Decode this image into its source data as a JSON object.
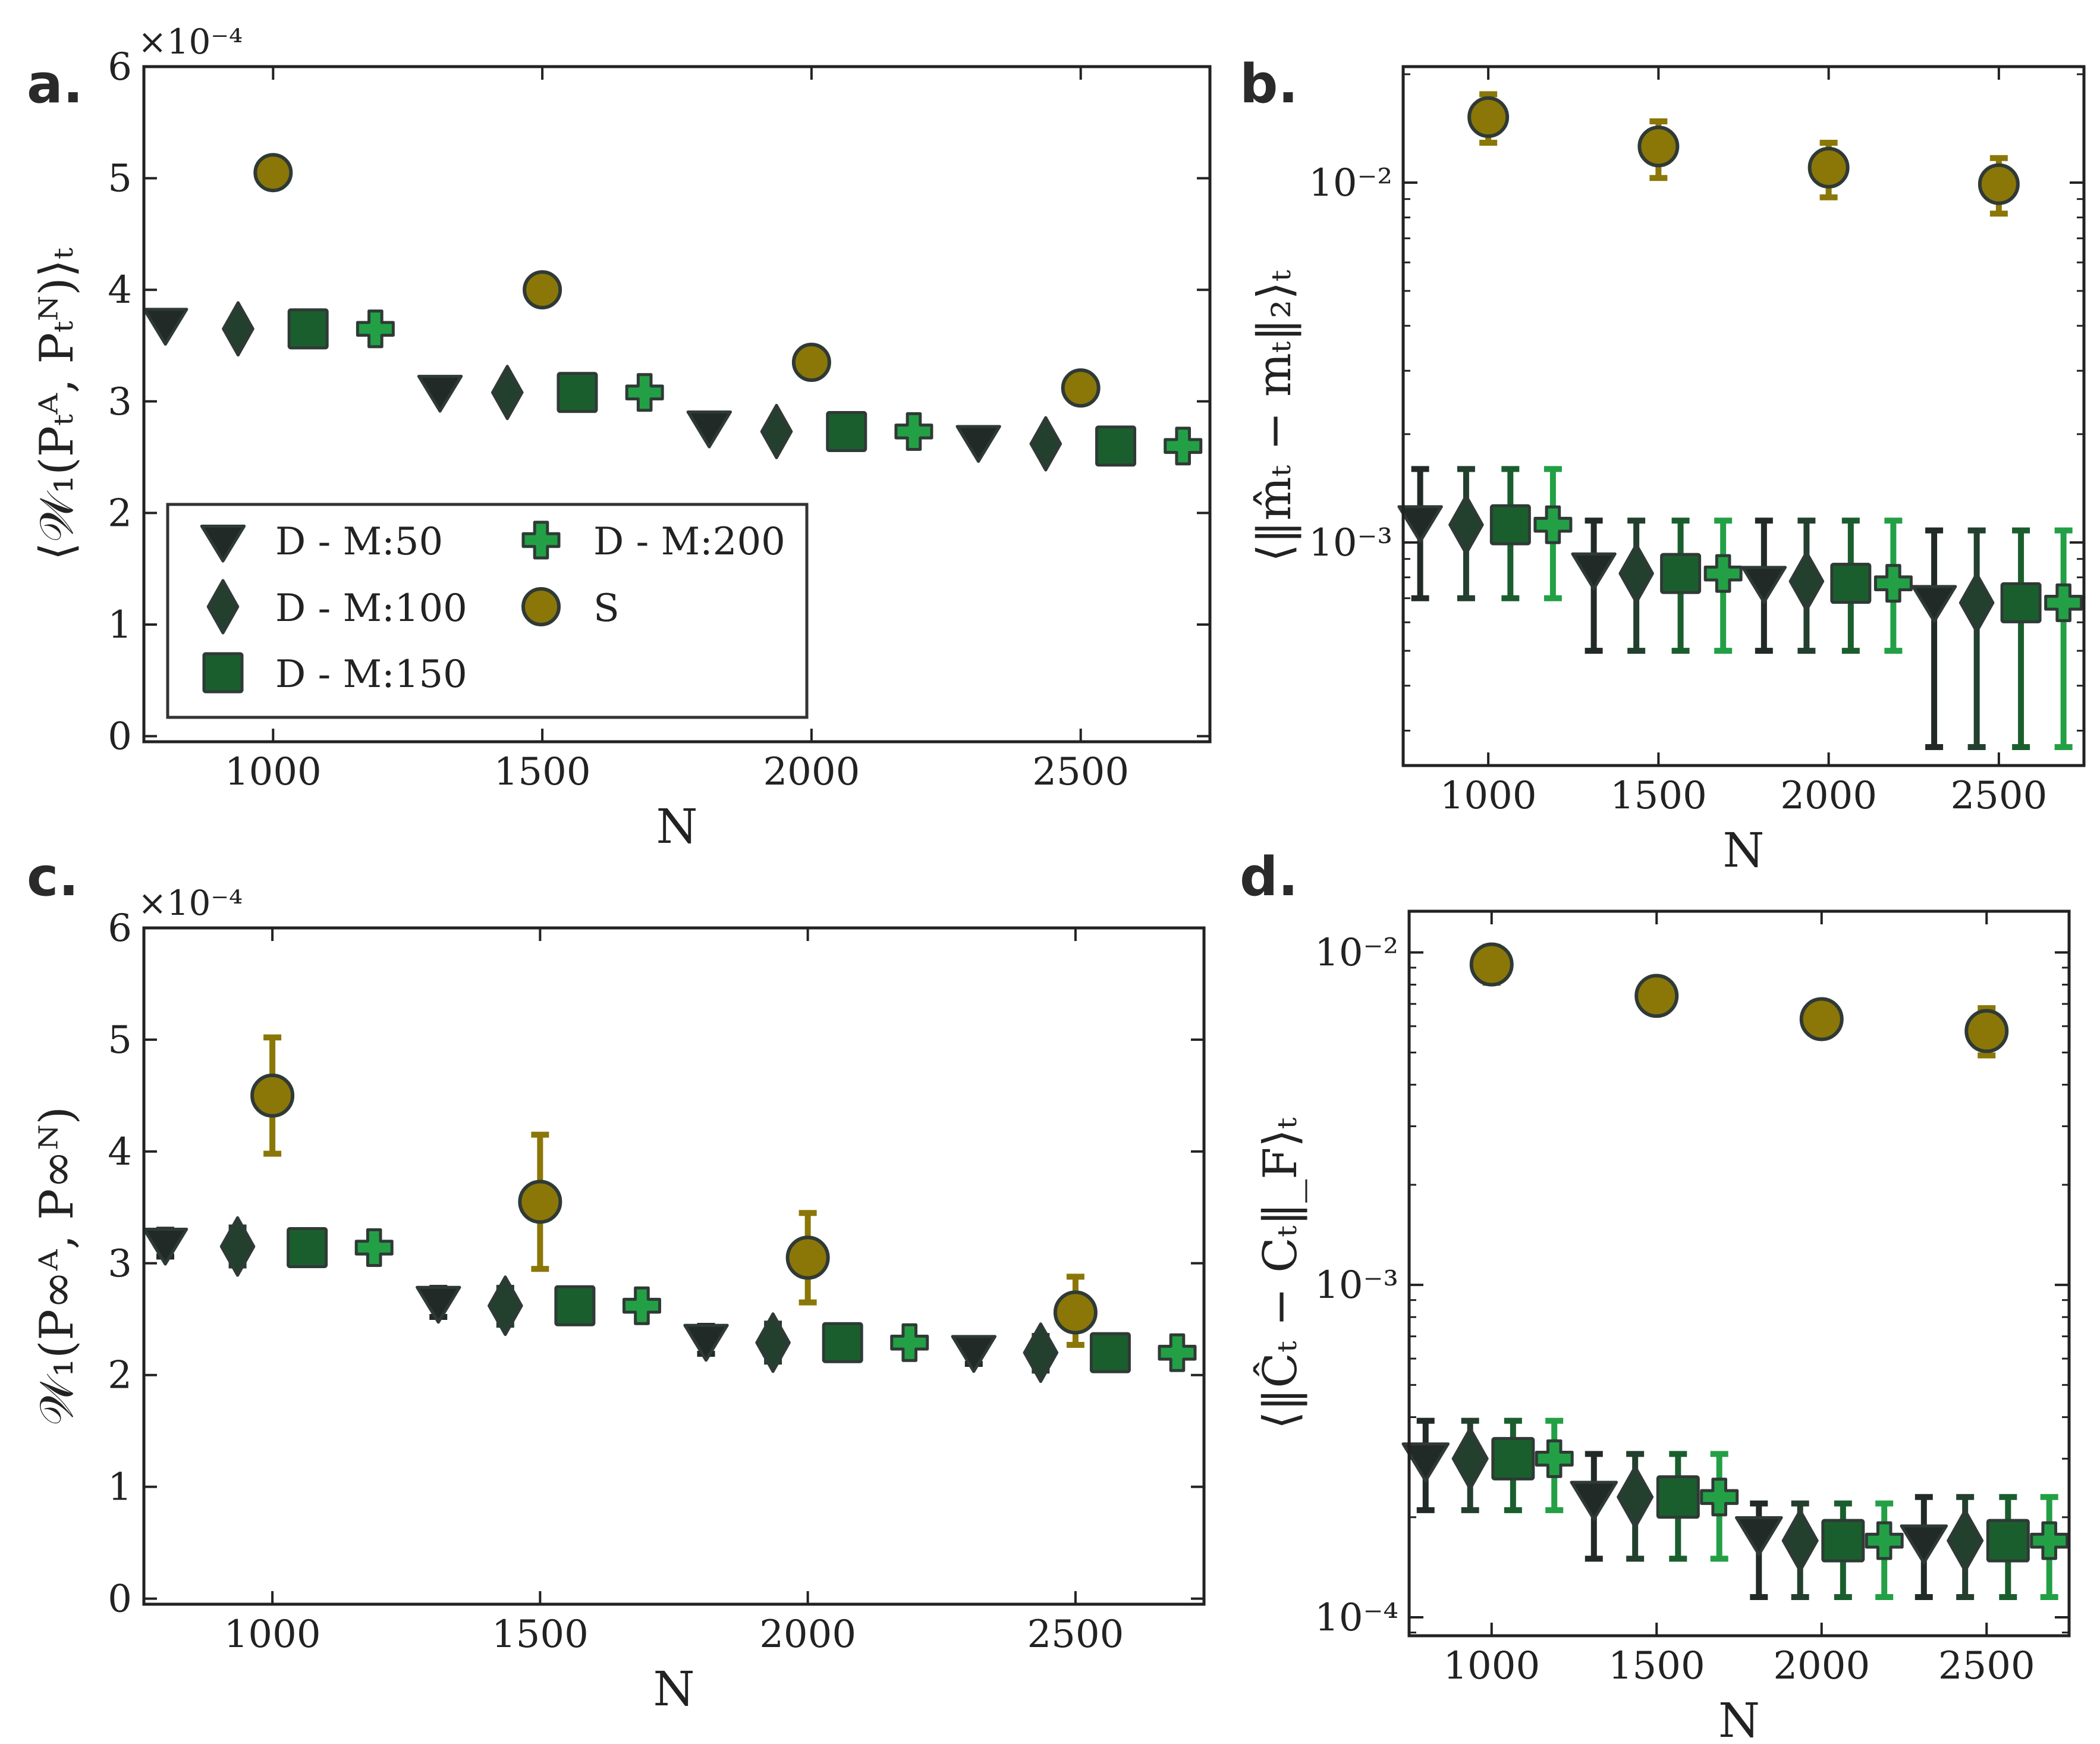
{
  "chart_data": [
    {
      "id": "a",
      "panel_label": "a.",
      "type": "scatter",
      "xlabel": "N",
      "ylabel": "⟨𝒲₁(Pₜᴬ, Pₜᴺ)⟩ₜ",
      "y_multiplier": "×10⁻⁴",
      "xlim": [
        760,
        2740
      ],
      "ylim": [
        -0.05,
        6
      ],
      "xticks": [
        1000,
        1500,
        2000,
        2500
      ],
      "yticks": [
        0,
        1,
        2,
        3,
        4,
        5,
        6
      ],
      "ytick_labels": [
        "0",
        "1",
        "2",
        "3",
        "4",
        "5",
        "6"
      ],
      "yscale": "linear",
      "legend": {
        "placement": "lower-left",
        "columns": 2
      },
      "series": [
        {
          "name": "D - M:50",
          "marker": "triangle-down",
          "color": "#222a28",
          "points": [
            [
              800,
              3.7
            ],
            [
              1310,
              3.1
            ],
            [
              1810,
              2.78
            ],
            [
              2310,
              2.65
            ]
          ]
        },
        {
          "name": "D - M:100",
          "marker": "diamond",
          "color": "#233f2e",
          "points": [
            [
              935,
              3.65
            ],
            [
              1435,
              3.08
            ],
            [
              1935,
              2.73
            ],
            [
              2435,
              2.62
            ]
          ]
        },
        {
          "name": "D - M:150",
          "marker": "square",
          "color": "#1b5e2e",
          "points": [
            [
              1065,
              3.65
            ],
            [
              1565,
              3.08
            ],
            [
              2065,
              2.73
            ],
            [
              2565,
              2.6
            ]
          ]
        },
        {
          "name": "D - M:200",
          "marker": "plus",
          "color": "#23a045",
          "points": [
            [
              1190,
              3.65
            ],
            [
              1690,
              3.08
            ],
            [
              2190,
              2.73
            ],
            [
              2690,
              2.6
            ]
          ]
        },
        {
          "name": "S",
          "marker": "circle",
          "color": "#8b7708",
          "points": [
            [
              1000,
              5.05
            ],
            [
              1500,
              4.0
            ],
            [
              2000,
              3.35
            ],
            [
              2500,
              3.12
            ]
          ]
        }
      ]
    },
    {
      "id": "b",
      "panel_label": "b.",
      "type": "scatter",
      "xlabel": "N",
      "ylabel": "⟨‖m̂ₜ − mₜ‖₂⟩ₜ",
      "xlim": [
        750,
        2750
      ],
      "ylim": [
        0.00024,
        0.021
      ],
      "xticks": [
        1000,
        1500,
        2000,
        2500
      ],
      "yscale": "log",
      "ytick_values": [
        0.001,
        0.01
      ],
      "ytick_labels": [
        "10⁻³",
        "10⁻²"
      ],
      "series": [
        {
          "name": "D - M:50",
          "marker": "triangle-down",
          "color": "#222a28",
          "points": [
            [
              800,
              0.00115,
              0.0007,
              0.0016
            ],
            [
              1310,
              0.00085,
              0.0005,
              0.00115
            ],
            [
              1810,
              0.00078,
              0.0005,
              0.00115
            ],
            [
              2310,
              0.00069,
              0.00027,
              0.00108
            ]
          ]
        },
        {
          "name": "D - M:100",
          "marker": "diamond",
          "color": "#233f2e",
          "points": [
            [
              935,
              0.00112,
              0.0007,
              0.0016
            ],
            [
              1435,
              0.00082,
              0.0005,
              0.00115
            ],
            [
              1935,
              0.00078,
              0.0005,
              0.00115
            ],
            [
              2435,
              0.00068,
              0.00027,
              0.00108
            ]
          ]
        },
        {
          "name": "D - M:150",
          "marker": "square",
          "color": "#1b5e2e",
          "points": [
            [
              1065,
              0.00112,
              0.0007,
              0.0016
            ],
            [
              1565,
              0.00082,
              0.0005,
              0.00115
            ],
            [
              2065,
              0.00077,
              0.0005,
              0.00115
            ],
            [
              2565,
              0.00068,
              0.00027,
              0.00108
            ]
          ]
        },
        {
          "name": "D - M:200",
          "marker": "plus",
          "color": "#23a045",
          "points": [
            [
              1190,
              0.00112,
              0.0007,
              0.0016
            ],
            [
              1690,
              0.00082,
              0.0005,
              0.00115
            ],
            [
              2190,
              0.00077,
              0.0005,
              0.00115
            ],
            [
              2690,
              0.00068,
              0.00027,
              0.00108
            ]
          ]
        },
        {
          "name": "S",
          "marker": "circle",
          "color": "#8b7708",
          "points": [
            [
              1000,
              0.0152,
              0.0129,
              0.0176
            ],
            [
              1500,
              0.0126,
              0.0103,
              0.0148
            ],
            [
              2000,
              0.011,
              0.0091,
              0.0129
            ],
            [
              2500,
              0.0099,
              0.0082,
              0.0117
            ]
          ]
        }
      ]
    },
    {
      "id": "c",
      "panel_label": "c.",
      "type": "scatter",
      "xlabel": "N",
      "ylabel": "𝒲₁(P∞ᴬ, P∞ᴺ)",
      "y_multiplier": "×10⁻⁴",
      "xlim": [
        760,
        2740
      ],
      "ylim": [
        -0.05,
        6
      ],
      "xticks": [
        1000,
        1500,
        2000,
        2500
      ],
      "yticks": [
        0,
        1,
        2,
        3,
        4,
        5,
        6
      ],
      "ytick_labels": [
        "0",
        "1",
        "2",
        "3",
        "4",
        "5",
        "6"
      ],
      "yscale": "linear",
      "series": [
        {
          "name": "D - M:50",
          "marker": "triangle-down",
          "color": "#222a28",
          "points": [
            [
              800,
              3.18,
              3.06,
              3.3
            ],
            [
              1310,
              2.66,
              2.52,
              2.78
            ],
            [
              1810,
              2.32,
              2.19,
              2.44
            ],
            [
              2310,
              2.22,
              2.1,
              2.33
            ]
          ]
        },
        {
          "name": "D - M:100",
          "marker": "diamond",
          "color": "#233f2e",
          "points": [
            [
              935,
              3.15,
              2.98,
              3.32
            ],
            [
              1435,
              2.62,
              2.45,
              2.78
            ],
            [
              1935,
              2.29,
              2.12,
              2.46
            ],
            [
              2435,
              2.2,
              2.04,
              2.35
            ]
          ]
        },
        {
          "name": "D - M:150",
          "marker": "square",
          "color": "#1b5e2e",
          "points": [
            [
              1065,
              3.14
            ],
            [
              1565,
              2.62
            ],
            [
              2065,
              2.29
            ],
            [
              2565,
              2.2
            ]
          ]
        },
        {
          "name": "D - M:200",
          "marker": "plus",
          "color": "#23a045",
          "points": [
            [
              1190,
              3.14
            ],
            [
              1690,
              2.62
            ],
            [
              2190,
              2.29
            ],
            [
              2690,
              2.2
            ]
          ]
        },
        {
          "name": "S",
          "marker": "circle",
          "color": "#8b7708",
          "points": [
            [
              1000,
              4.5,
              3.98,
              5.02
            ],
            [
              1500,
              3.55,
              2.95,
              4.15
            ],
            [
              2000,
              3.05,
              2.65,
              3.45
            ],
            [
              2500,
              2.56,
              2.27,
              2.88
            ]
          ]
        }
      ]
    },
    {
      "id": "d",
      "panel_label": "d.",
      "type": "scatter",
      "xlabel": "N",
      "ylabel": "⟨‖Ĉₜ − Cₜ‖_F⟩ₜ",
      "xlim": [
        750,
        2750
      ],
      "ylim": [
        8.8e-05,
        0.0133
      ],
      "xticks": [
        1000,
        1500,
        2000,
        2500
      ],
      "yscale": "log",
      "ytick_values": [
        0.0001,
        0.001,
        0.01
      ],
      "ytick_labels": [
        "10⁻⁴",
        "10⁻³",
        "10⁻²"
      ],
      "series": [
        {
          "name": "D - M:50",
          "marker": "triangle-down",
          "color": "#222a28",
          "points": [
            [
              800,
              0.0003,
              0.00021,
              0.00039
            ],
            [
              1310,
              0.00023,
              0.00015,
              0.00031
            ],
            [
              1810,
              0.00018,
              0.000115,
              0.00022
            ],
            [
              2310,
              0.00017,
              0.000115,
              0.00023
            ]
          ]
        },
        {
          "name": "D - M:100",
          "marker": "diamond",
          "color": "#233f2e",
          "points": [
            [
              935,
              0.0003,
              0.00021,
              0.00039
            ],
            [
              1435,
              0.00023,
              0.00015,
              0.00031
            ],
            [
              1935,
              0.00017,
              0.000115,
              0.00022
            ],
            [
              2435,
              0.00017,
              0.000115,
              0.00023
            ]
          ]
        },
        {
          "name": "D - M:150",
          "marker": "square",
          "color": "#1b5e2e",
          "points": [
            [
              1065,
              0.0003,
              0.00021,
              0.00039
            ],
            [
              1565,
              0.00023,
              0.00015,
              0.00031
            ],
            [
              2065,
              0.00017,
              0.000115,
              0.00022
            ],
            [
              2565,
              0.00017,
              0.000115,
              0.00023
            ]
          ]
        },
        {
          "name": "D - M:200",
          "marker": "plus",
          "color": "#23a045",
          "points": [
            [
              1190,
              0.0003,
              0.00021,
              0.00039
            ],
            [
              1690,
              0.00023,
              0.00015,
              0.00031
            ],
            [
              2190,
              0.00017,
              0.000115,
              0.00022
            ],
            [
              2690,
              0.00017,
              0.000115,
              0.00023
            ]
          ]
        },
        {
          "name": "S",
          "marker": "circle",
          "color": "#8b7708",
          "points": [
            [
              1000,
              0.0092,
              0.0081,
              0.0104
            ],
            [
              1500,
              0.0074,
              0.0068,
              0.0081
            ],
            [
              2000,
              0.0063,
              0.0058,
              0.0069
            ],
            [
              2500,
              0.0058,
              0.0049,
              0.0068
            ]
          ]
        }
      ]
    }
  ]
}
